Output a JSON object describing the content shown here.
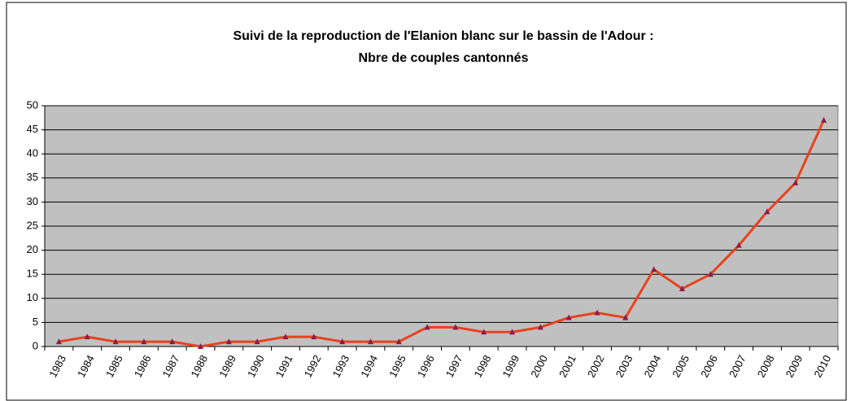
{
  "chart_data": {
    "type": "line",
    "title": [
      "Suivi de la reproduction de l'Elanion blanc sur le bassin de l'Adour :",
      "Nbre de couples cantonnés"
    ],
    "categories": [
      "1983",
      "1984",
      "1985",
      "1986",
      "1987",
      "1988",
      "1989",
      "1990",
      "1991",
      "1992",
      "1993",
      "1994",
      "1995",
      "1996",
      "1997",
      "1998",
      "1999",
      "2000",
      "2001",
      "2002",
      "2003",
      "2004",
      "2005",
      "2006",
      "2007",
      "2008",
      "2009",
      "2010"
    ],
    "series": [
      {
        "color": "#e8421f",
        "marker_color": "#8b1c4a",
        "values": [
          1,
          2,
          1,
          1,
          1,
          0,
          1,
          1,
          2,
          2,
          1,
          1,
          1,
          4,
          4,
          3,
          3,
          4,
          6,
          7,
          6,
          16,
          12,
          15,
          21,
          28,
          34,
          47
        ]
      }
    ],
    "ylim": [
      0,
      50
    ],
    "yticks": [
      0,
      5,
      10,
      15,
      20,
      25,
      30,
      35,
      40,
      45,
      50
    ],
    "grid": true
  }
}
